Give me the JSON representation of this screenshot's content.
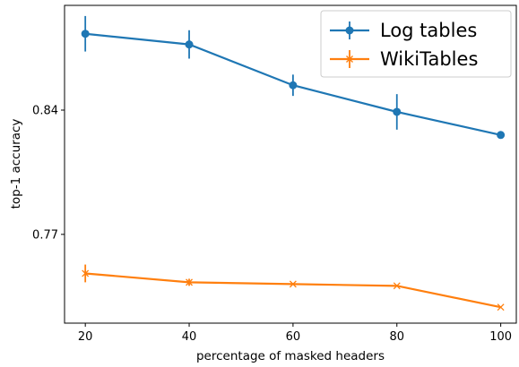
{
  "chart_data": {
    "type": "line",
    "title": "",
    "xlabel": "percentage of masked headers",
    "ylabel": "top-1 accuracy",
    "x": [
      20,
      40,
      60,
      80,
      100
    ],
    "xticks": [
      "20",
      "40",
      "60",
      "80",
      "100"
    ],
    "yticks": [
      "0.77",
      "0.84"
    ],
    "xlim": [
      16,
      103
    ],
    "ylim": [
      0.72,
      0.899
    ],
    "grid": false,
    "legend_position": "top-right",
    "series": [
      {
        "name": "Log tables",
        "color": "#1f77b4",
        "marker": "circle",
        "values": [
          0.883,
          0.877,
          0.854,
          0.839,
          0.826
        ],
        "errors": [
          0.01,
          0.008,
          0.006,
          0.01,
          0.0
        ]
      },
      {
        "name": "WikiTables",
        "color": "#ff7f0e",
        "marker": "x",
        "values": [
          0.748,
          0.743,
          0.742,
          0.741,
          0.729
        ],
        "errors": [
          0.005,
          0.002,
          0.0,
          0.0,
          0.0
        ]
      }
    ]
  }
}
